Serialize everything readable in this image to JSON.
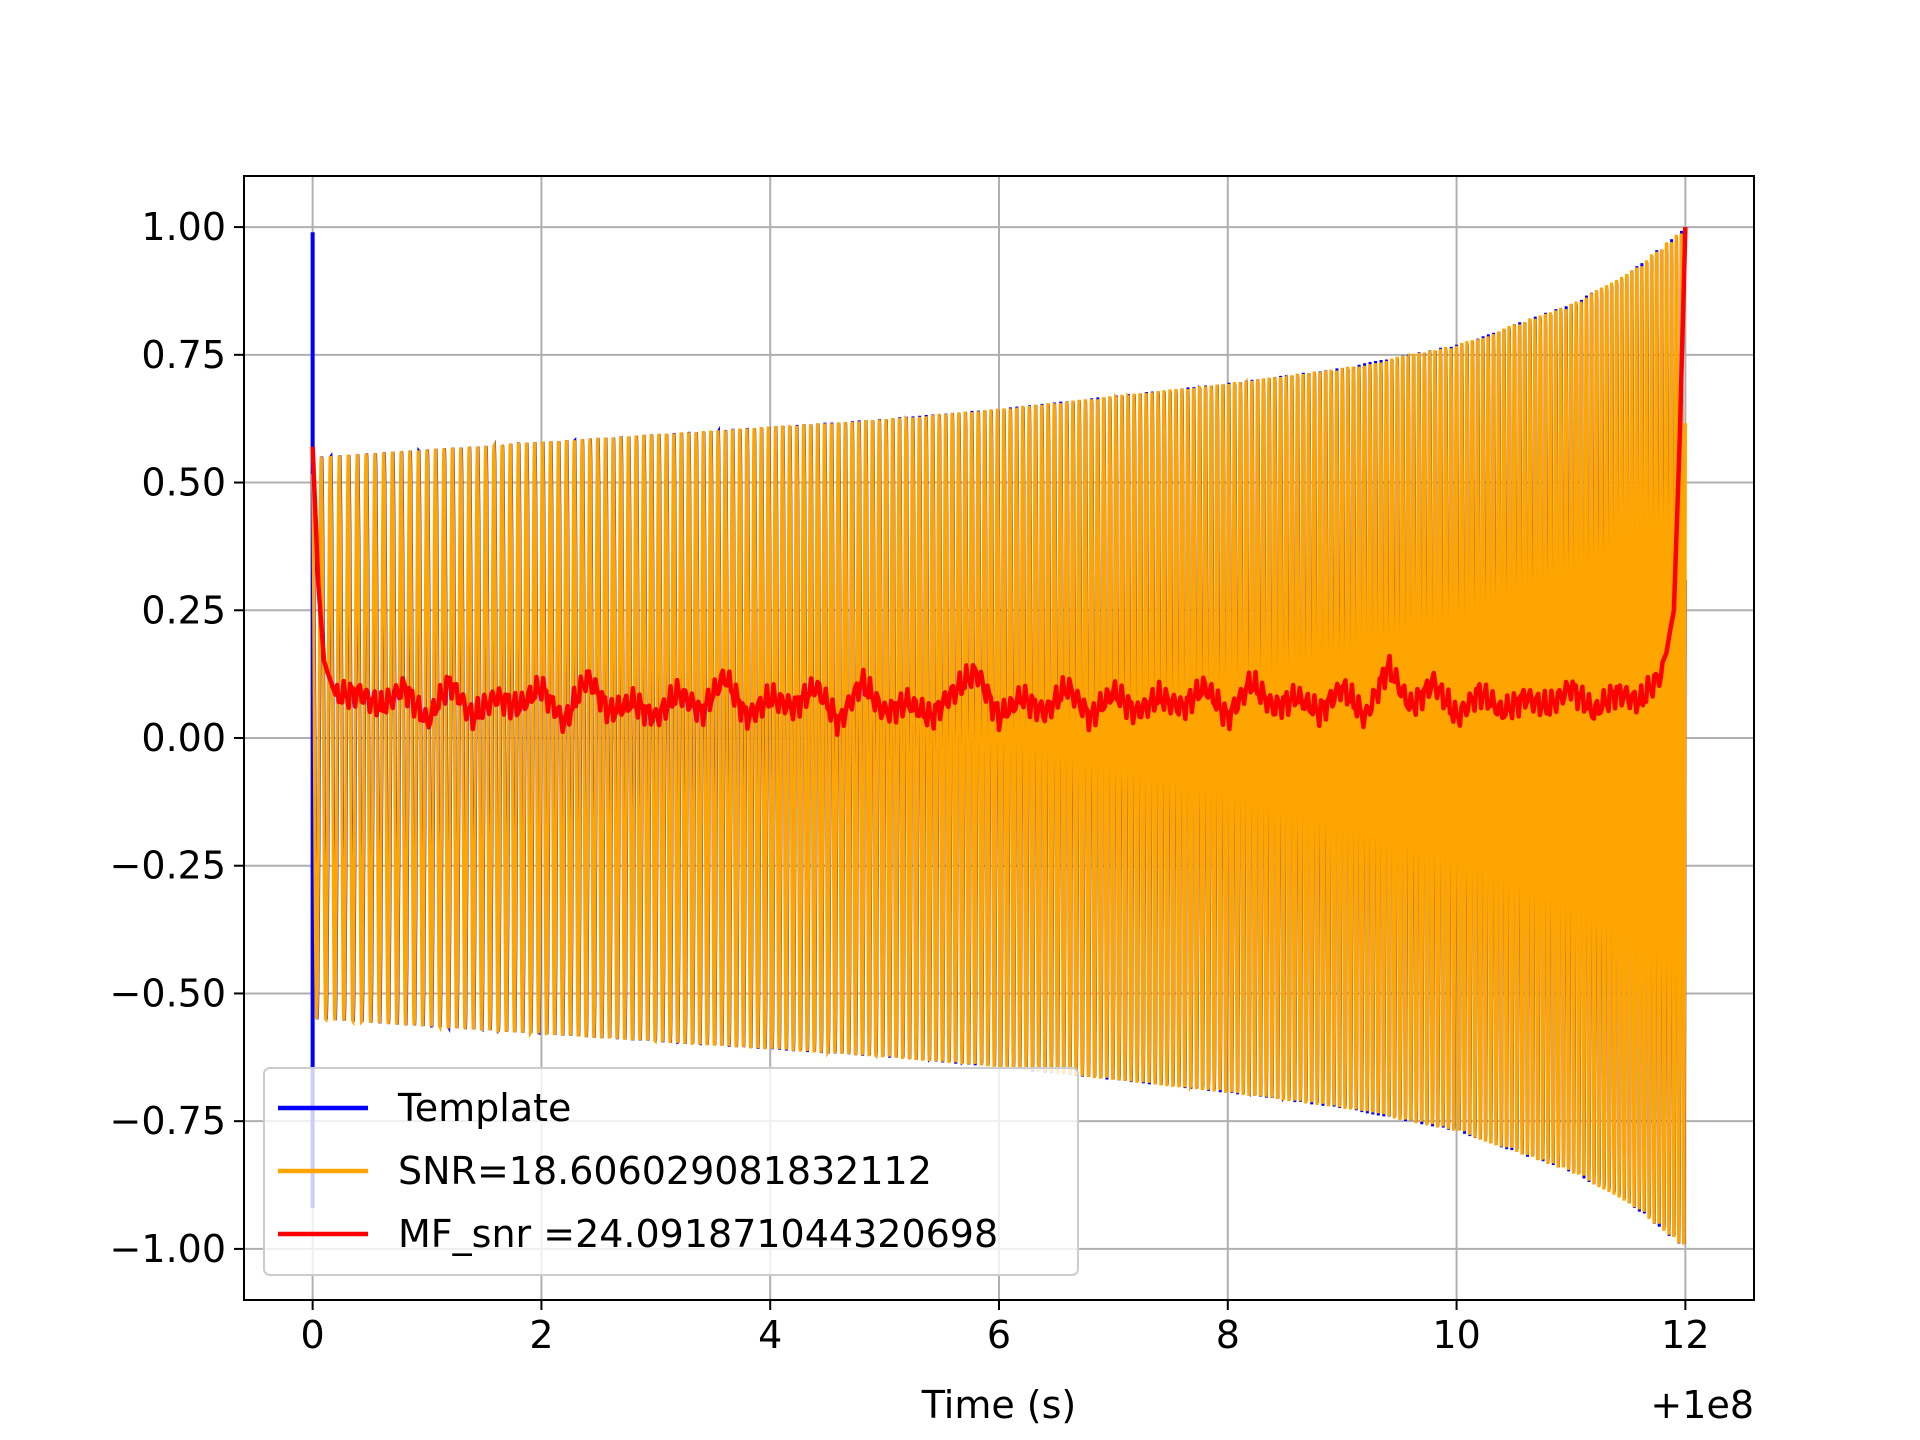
{
  "chart_data": {
    "type": "line",
    "title": "",
    "xlabel": "Time (s)",
    "ylabel": "",
    "x_offset_label": "+1e8",
    "xlim": [
      -0.6,
      12.6
    ],
    "ylim": [
      -1.1,
      1.1
    ],
    "xticks": [
      0,
      2,
      4,
      6,
      8,
      10,
      12
    ],
    "xtick_labels": [
      "0",
      "2",
      "4",
      "6",
      "8",
      "10",
      "12"
    ],
    "yticks": [
      1.0,
      0.75,
      0.5,
      0.25,
      0.0,
      -0.25,
      -0.5,
      -0.75,
      -1.0
    ],
    "ytick_labels": [
      "1.00",
      "0.75",
      "0.50",
      "0.25",
      "0.00",
      "−0.25",
      "−0.50",
      "−0.75",
      "−1.00"
    ],
    "grid": true,
    "legend_position": "lower-left",
    "series": [
      {
        "name": "Template",
        "color": "#0000ff",
        "envelope_x": [
          0.0,
          1,
          2,
          3,
          4,
          5,
          6,
          7,
          8,
          9,
          10,
          11,
          11.5,
          12.0
        ],
        "envelope_upper": [
          0.55,
          0.565,
          0.58,
          0.595,
          0.61,
          0.625,
          0.645,
          0.67,
          0.695,
          0.725,
          0.77,
          0.85,
          0.91,
          1.0
        ],
        "start_spike": [
          0.99,
          -0.92
        ]
      },
      {
        "name": "SNR=18.606029081832112",
        "color": "#ffa500",
        "envelope_x": [
          0.0,
          1,
          2,
          3,
          4,
          5,
          6,
          7,
          8,
          9,
          10,
          11,
          11.5,
          12.0
        ],
        "envelope_upper": [
          0.55,
          0.565,
          0.58,
          0.595,
          0.61,
          0.625,
          0.645,
          0.67,
          0.695,
          0.725,
          0.77,
          0.85,
          0.91,
          1.0
        ]
      },
      {
        "name": "MF_snr =24.091871044320698",
        "color": "#ff0000",
        "x": [
          0.0,
          0.05,
          0.1,
          0.2,
          0.4,
          0.6,
          0.8,
          1.0,
          1.2,
          1.4,
          1.6,
          1.8,
          2.0,
          2.2,
          2.4,
          2.6,
          2.8,
          3.0,
          3.2,
          3.4,
          3.6,
          3.8,
          4.0,
          4.2,
          4.4,
          4.6,
          4.8,
          5.0,
          5.2,
          5.4,
          5.6,
          5.8,
          6.0,
          6.2,
          6.4,
          6.6,
          6.8,
          7.0,
          7.2,
          7.4,
          7.6,
          7.8,
          8.0,
          8.2,
          8.4,
          8.6,
          8.8,
          9.0,
          9.2,
          9.4,
          9.6,
          9.8,
          10.0,
          10.2,
          10.4,
          10.6,
          10.8,
          11.0,
          11.2,
          11.4,
          11.6,
          11.8,
          11.9,
          11.95,
          12.0
        ],
        "y": [
          0.57,
          0.3,
          0.15,
          0.08,
          0.09,
          0.06,
          0.1,
          0.03,
          0.11,
          0.04,
          0.08,
          0.06,
          0.1,
          0.03,
          0.12,
          0.05,
          0.07,
          0.04,
          0.09,
          0.05,
          0.12,
          0.04,
          0.08,
          0.06,
          0.1,
          0.03,
          0.11,
          0.05,
          0.07,
          0.04,
          0.09,
          0.13,
          0.04,
          0.08,
          0.05,
          0.1,
          0.04,
          0.09,
          0.05,
          0.08,
          0.06,
          0.1,
          0.04,
          0.11,
          0.06,
          0.08,
          0.05,
          0.1,
          0.04,
          0.14,
          0.06,
          0.11,
          0.04,
          0.09,
          0.05,
          0.08,
          0.06,
          0.1,
          0.05,
          0.09,
          0.07,
          0.13,
          0.25,
          0.58,
          1.0
        ]
      }
    ]
  }
}
